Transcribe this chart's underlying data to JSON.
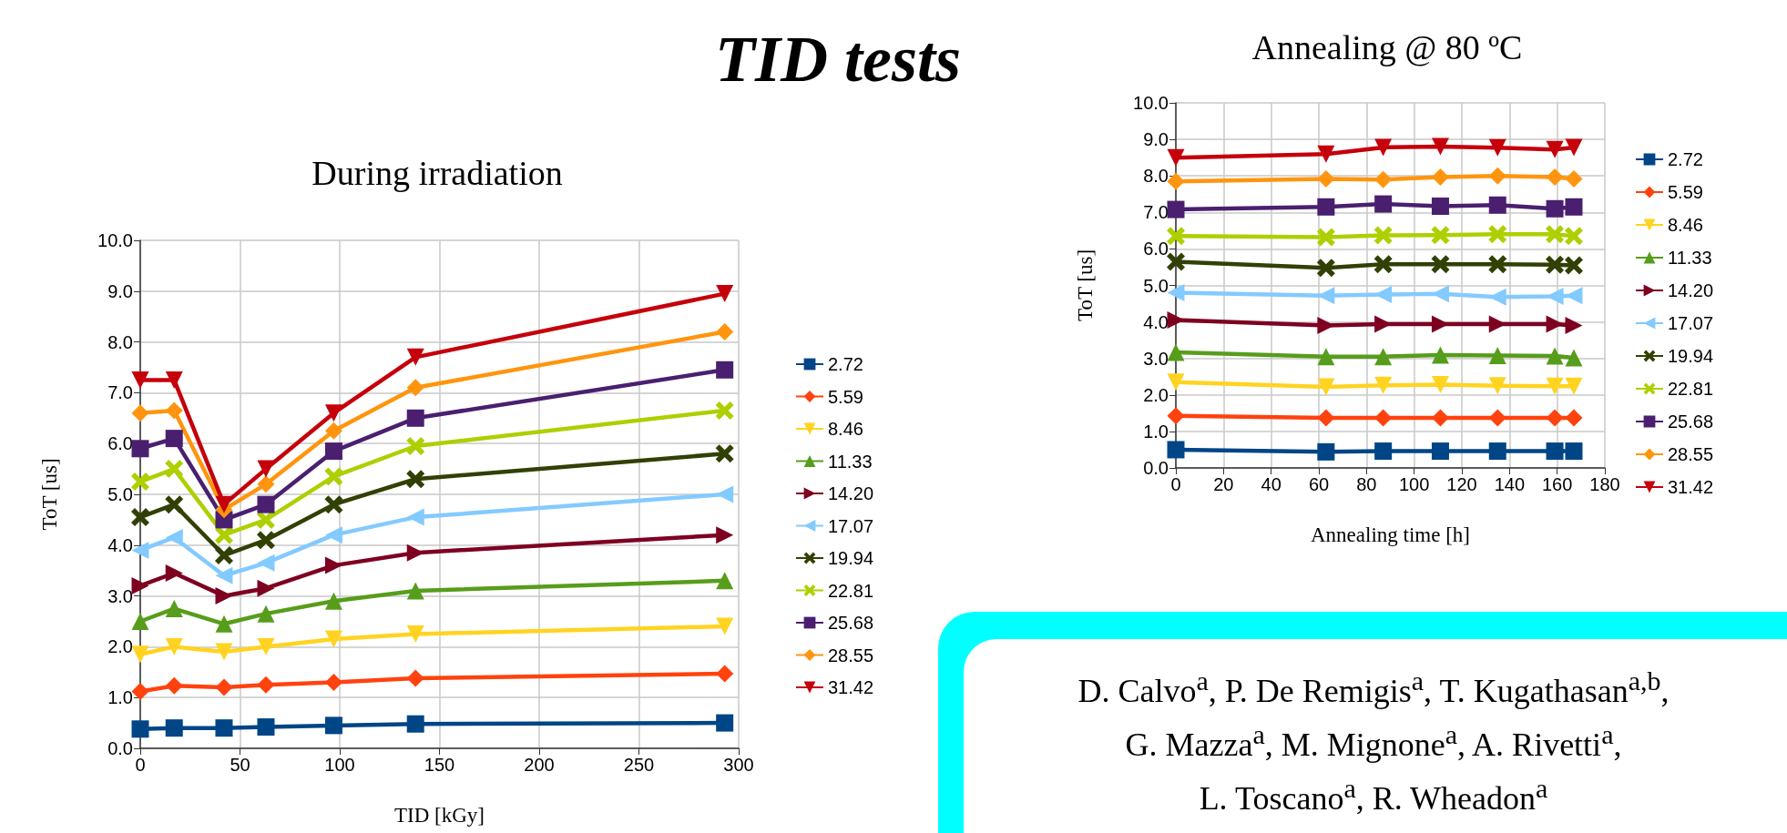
{
  "chart_data": [
    {
      "type": "line",
      "title": "During irradiation",
      "xlabel": "TID [kGy]",
      "ylabel": "ToT [us]",
      "xlim": [
        0,
        300
      ],
      "xticks": [
        0,
        50,
        100,
        150,
        200,
        250,
        300
      ],
      "ylim": [
        0,
        10
      ],
      "yticks": [
        {
          "value": 0,
          "label": "0.0"
        },
        {
          "value": 1,
          "label": "1.0"
        },
        {
          "value": 2,
          "label": "2.0"
        },
        {
          "value": 3,
          "label": "3.0"
        },
        {
          "value": 4,
          "label": "4.0"
        },
        {
          "value": 5,
          "label": "5.0"
        },
        {
          "value": 6,
          "label": "6.0"
        },
        {
          "value": 7,
          "label": "7.0"
        },
        {
          "value": 8,
          "label": "8.0"
        },
        {
          "value": 9,
          "label": "9.0"
        },
        {
          "value": 10,
          "label": "10.0"
        }
      ],
      "grid": true,
      "legend": "right",
      "line_style": "solid",
      "x": [
        0,
        17,
        42,
        63,
        97,
        138,
        293
      ],
      "series": [
        {
          "name": "2.72",
          "color": "#004586",
          "marker": "square",
          "values": [
            0.38,
            0.4,
            0.4,
            0.42,
            0.45,
            0.48,
            0.5
          ]
        },
        {
          "name": "5.59",
          "color": "#ff420e",
          "marker": "diamond",
          "values": [
            1.12,
            1.23,
            1.2,
            1.25,
            1.3,
            1.38,
            1.47
          ]
        },
        {
          "name": "8.46",
          "color": "#ffd320",
          "marker": "triangle-down",
          "values": [
            1.85,
            2.0,
            1.9,
            2.0,
            2.15,
            2.25,
            2.4
          ]
        },
        {
          "name": "11.33",
          "color": "#579d1c",
          "marker": "triangle",
          "values": [
            2.5,
            2.75,
            2.45,
            2.65,
            2.9,
            3.1,
            3.3
          ]
        },
        {
          "name": "14.20",
          "color": "#7e0021",
          "marker": "triangle-right",
          "values": [
            3.2,
            3.45,
            3.0,
            3.15,
            3.6,
            3.85,
            4.2
          ]
        },
        {
          "name": "17.07",
          "color": "#83caff",
          "marker": "triangle-left",
          "values": [
            3.9,
            4.15,
            3.4,
            3.65,
            4.2,
            4.55,
            5.0
          ]
        },
        {
          "name": "19.94",
          "color": "#314004",
          "marker": "cross",
          "values": [
            4.55,
            4.8,
            3.8,
            4.1,
            4.8,
            5.3,
            5.8
          ]
        },
        {
          "name": "22.81",
          "color": "#aecf00",
          "marker": "cross",
          "values": [
            5.25,
            5.5,
            4.2,
            4.5,
            5.35,
            5.95,
            6.65
          ]
        },
        {
          "name": "25.68",
          "color": "#4b1f6f",
          "marker": "square",
          "values": [
            5.9,
            6.1,
            4.5,
            4.8,
            5.85,
            6.5,
            7.45
          ]
        },
        {
          "name": "28.55",
          "color": "#ff950e",
          "marker": "diamond",
          "values": [
            6.6,
            6.65,
            4.7,
            5.2,
            6.25,
            7.1,
            8.2
          ]
        },
        {
          "name": "31.42",
          "color": "#c5000b",
          "marker": "triangle-down",
          "values": [
            7.25,
            7.25,
            4.8,
            5.5,
            6.6,
            7.7,
            8.95
          ]
        }
      ]
    },
    {
      "type": "line",
      "title": "Annealing @ 80 ºC",
      "xlabel": "Annealing time [h]",
      "ylabel": "ToT [us]",
      "xlim": [
        0,
        180
      ],
      "xticks": [
        0,
        20,
        40,
        60,
        80,
        100,
        120,
        140,
        160,
        180
      ],
      "ylim": [
        0,
        10
      ],
      "yticks": [
        {
          "value": 0,
          "label": "0.0"
        },
        {
          "value": 1,
          "label": "1.0"
        },
        {
          "value": 2,
          "label": "2.0"
        },
        {
          "value": 3,
          "label": "3.0"
        },
        {
          "value": 4,
          "label": "4.0"
        },
        {
          "value": 5,
          "label": "5.0"
        },
        {
          "value": 6,
          "label": "6.0"
        },
        {
          "value": 7,
          "label": "7.0"
        },
        {
          "value": 8,
          "label": "8.0"
        },
        {
          "value": 9,
          "label": "9.0"
        },
        {
          "value": 10,
          "label": "10.0"
        }
      ],
      "grid": true,
      "legend": "right",
      "line_style": "solid",
      "x": [
        0,
        63,
        87,
        111,
        135,
        159,
        167
      ],
      "series": [
        {
          "name": "2.72",
          "color": "#004586",
          "marker": "square",
          "values": [
            0.5,
            0.44,
            0.46,
            0.46,
            0.46,
            0.46,
            0.46
          ]
        },
        {
          "name": "5.59",
          "color": "#ff420e",
          "marker": "diamond",
          "values": [
            1.43,
            1.37,
            1.37,
            1.37,
            1.37,
            1.37,
            1.37
          ]
        },
        {
          "name": "8.46",
          "color": "#ffd320",
          "marker": "triangle-down",
          "values": [
            2.35,
            2.22,
            2.26,
            2.28,
            2.25,
            2.24,
            2.24
          ]
        },
        {
          "name": "11.33",
          "color": "#579d1c",
          "marker": "triangle",
          "values": [
            3.17,
            3.05,
            3.05,
            3.09,
            3.08,
            3.07,
            3.02
          ]
        },
        {
          "name": "14.20",
          "color": "#7e0021",
          "marker": "triangle-right",
          "values": [
            4.05,
            3.9,
            3.94,
            3.94,
            3.94,
            3.94,
            3.9
          ]
        },
        {
          "name": "17.07",
          "color": "#83caff",
          "marker": "triangle-left",
          "values": [
            4.8,
            4.72,
            4.75,
            4.77,
            4.68,
            4.7,
            4.72
          ]
        },
        {
          "name": "19.94",
          "color": "#314004",
          "marker": "cross",
          "values": [
            5.65,
            5.48,
            5.58,
            5.58,
            5.58,
            5.57,
            5.55
          ]
        },
        {
          "name": "22.81",
          "color": "#aecf00",
          "marker": "cross",
          "values": [
            6.35,
            6.32,
            6.37,
            6.38,
            6.4,
            6.4,
            6.35
          ]
        },
        {
          "name": "25.68",
          "color": "#4b1f6f",
          "marker": "square",
          "values": [
            7.08,
            7.15,
            7.23,
            7.17,
            7.2,
            7.1,
            7.15
          ]
        },
        {
          "name": "28.55",
          "color": "#ff950e",
          "marker": "diamond",
          "values": [
            7.85,
            7.92,
            7.9,
            7.97,
            8.0,
            7.97,
            7.92
          ]
        },
        {
          "name": "31.42",
          "color": "#c5000b",
          "marker": "triangle-down",
          "values": [
            8.5,
            8.6,
            8.78,
            8.8,
            8.77,
            8.72,
            8.78
          ]
        }
      ]
    },
    {
      "type": "other",
      "title": "TID tests",
      "annotations": [
        "D. Calvo$^{a}$, P. De Remigis$^{a}$, T. Kugathasan$^{a,b}$,",
        "G. Mazza$^{a}$,  M. Mignone$^{a}$, A. Rivetti$^{a}$,",
        "L. Toscano$^{a}$, R. Wheadon$^{a}$"
      ]
    }
  ]
}
